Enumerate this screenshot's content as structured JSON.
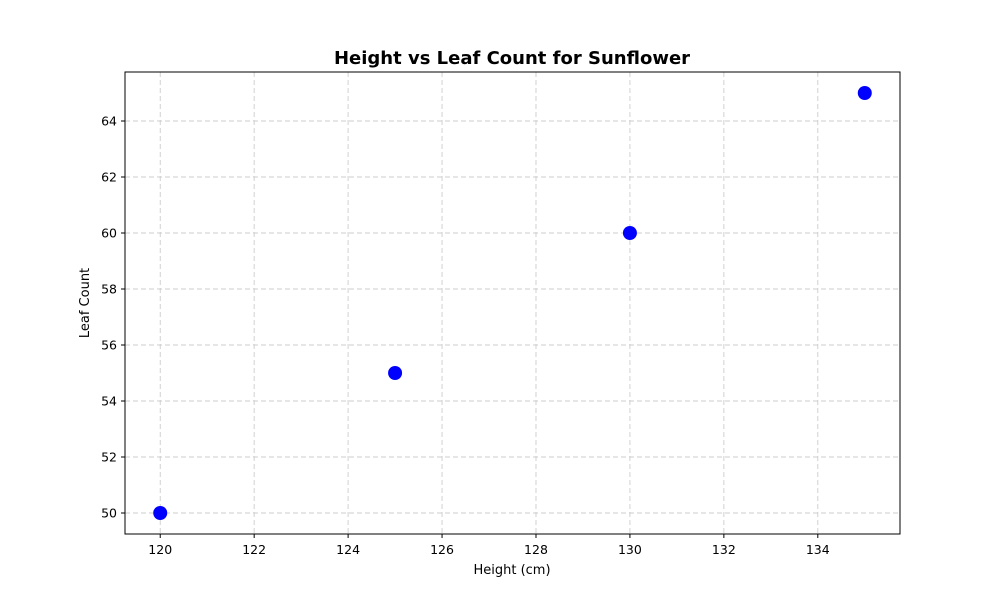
{
  "chart_data": {
    "type": "scatter",
    "title": "Height vs Leaf Count for Sunflower",
    "xlabel": "Height (cm)",
    "ylabel": "Leaf Count",
    "xlim": [
      119.25,
      135.75
    ],
    "ylim": [
      49.25,
      65.75
    ],
    "xticks": [
      120,
      122,
      124,
      126,
      128,
      130,
      132,
      134
    ],
    "yticks": [
      50,
      52,
      54,
      56,
      58,
      60,
      62,
      64
    ],
    "grid": true,
    "series": [
      {
        "color": "#0000ff",
        "points": [
          {
            "x": 120,
            "y": 50
          },
          {
            "x": 125,
            "y": 55
          },
          {
            "x": 130,
            "y": 60
          },
          {
            "x": 135,
            "y": 65
          }
        ]
      }
    ]
  }
}
